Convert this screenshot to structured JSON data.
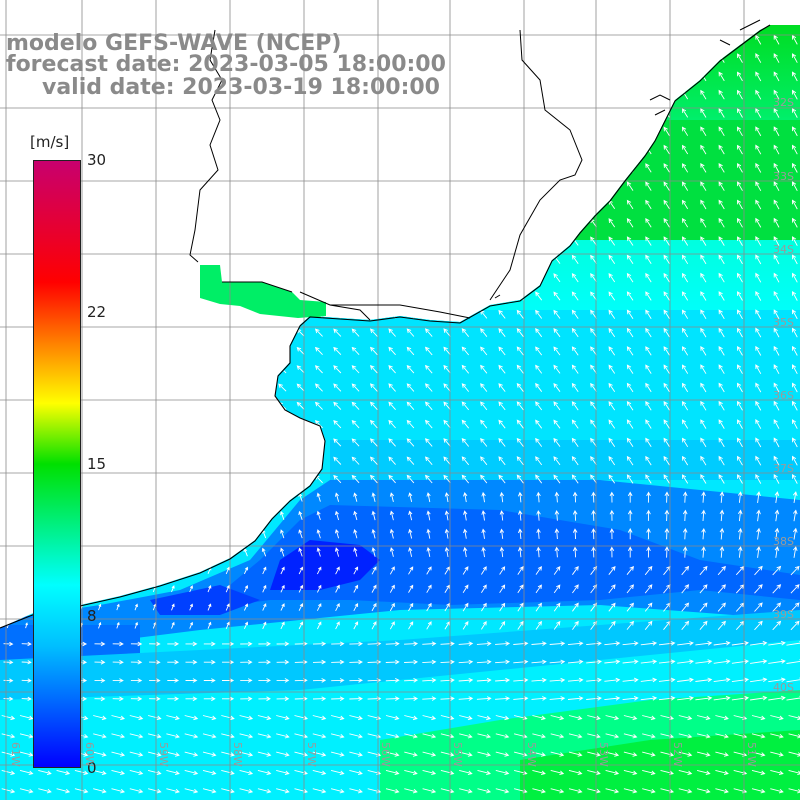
{
  "title": {
    "line1": "modelo GEFS-WAVE (NCEP)",
    "line2": "forecast date: 2023-03-05 18:00:00",
    "line3": "valid date: 2023-03-19 18:00:00"
  },
  "colorbar": {
    "unit": "[m/s]",
    "ticks": [
      "30",
      "22",
      "15",
      "8",
      "0"
    ]
  },
  "lat_labels": [
    "32S",
    "33S",
    "34S",
    "35S",
    "36S",
    "37S",
    "38S",
    "39S",
    "40S"
  ],
  "lon_labels": [
    "61W",
    "60W",
    "59W",
    "58W",
    "57W",
    "56W",
    "55W",
    "54W",
    "53W",
    "52W",
    "51W"
  ],
  "colors": {
    "land": "#ffffff",
    "coast": "#000000",
    "grid": "#8a8a8a",
    "arrow": "#ffffff",
    "title": "#8a8a8a"
  }
}
